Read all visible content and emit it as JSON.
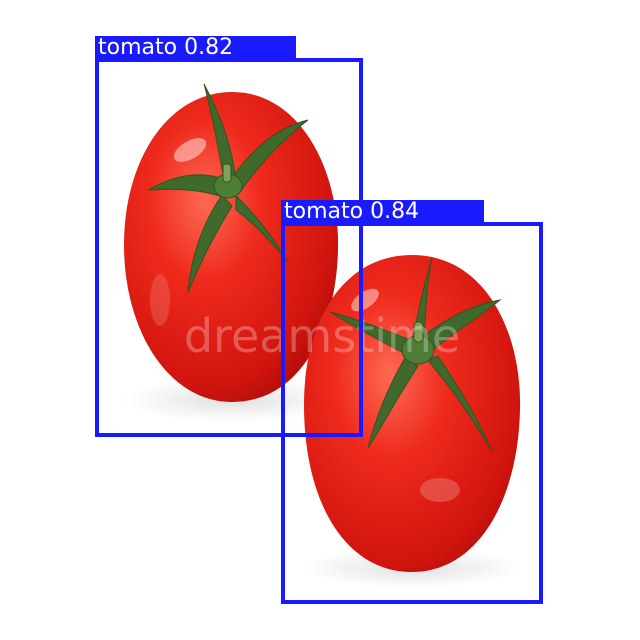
{
  "detections": [
    {
      "label": "tomato 0.82",
      "class": "tomato",
      "score": 0.82
    },
    {
      "label": "tomato 0.84",
      "class": "tomato",
      "score": 0.84
    }
  ],
  "watermark": "dreamstime",
  "colors": {
    "box": "#1a1aff",
    "label_text": "#ffffff",
    "tomato": "#e01a14",
    "stem": "#3f6a2c",
    "background": "#ffffff"
  }
}
